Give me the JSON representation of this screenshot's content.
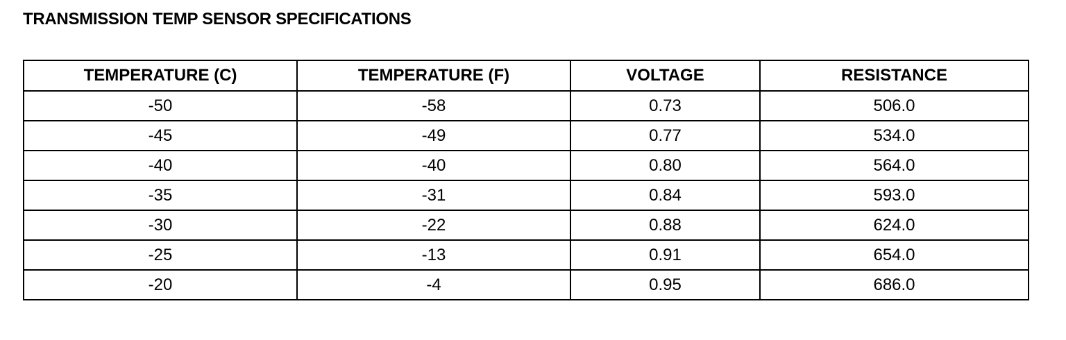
{
  "header": {
    "title": "TRANSMISSION TEMP SENSOR SPECIFICATIONS"
  },
  "table": {
    "columns": [
      "TEMPERATURE (C)",
      "TEMPERATURE (F)",
      "VOLTAGE",
      "RESISTANCE"
    ],
    "rows": [
      [
        "-50",
        "-58",
        "0.73",
        "506.0"
      ],
      [
        "-45",
        "-49",
        "0.77",
        "534.0"
      ],
      [
        "-40",
        "-40",
        "0.80",
        "564.0"
      ],
      [
        "-35",
        "-31",
        "0.84",
        "593.0"
      ],
      [
        "-30",
        "-22",
        "0.88",
        "624.0"
      ],
      [
        "-25",
        "-13",
        "0.91",
        "654.0"
      ],
      [
        "-20",
        "-4",
        "0.95",
        "686.0"
      ]
    ]
  }
}
